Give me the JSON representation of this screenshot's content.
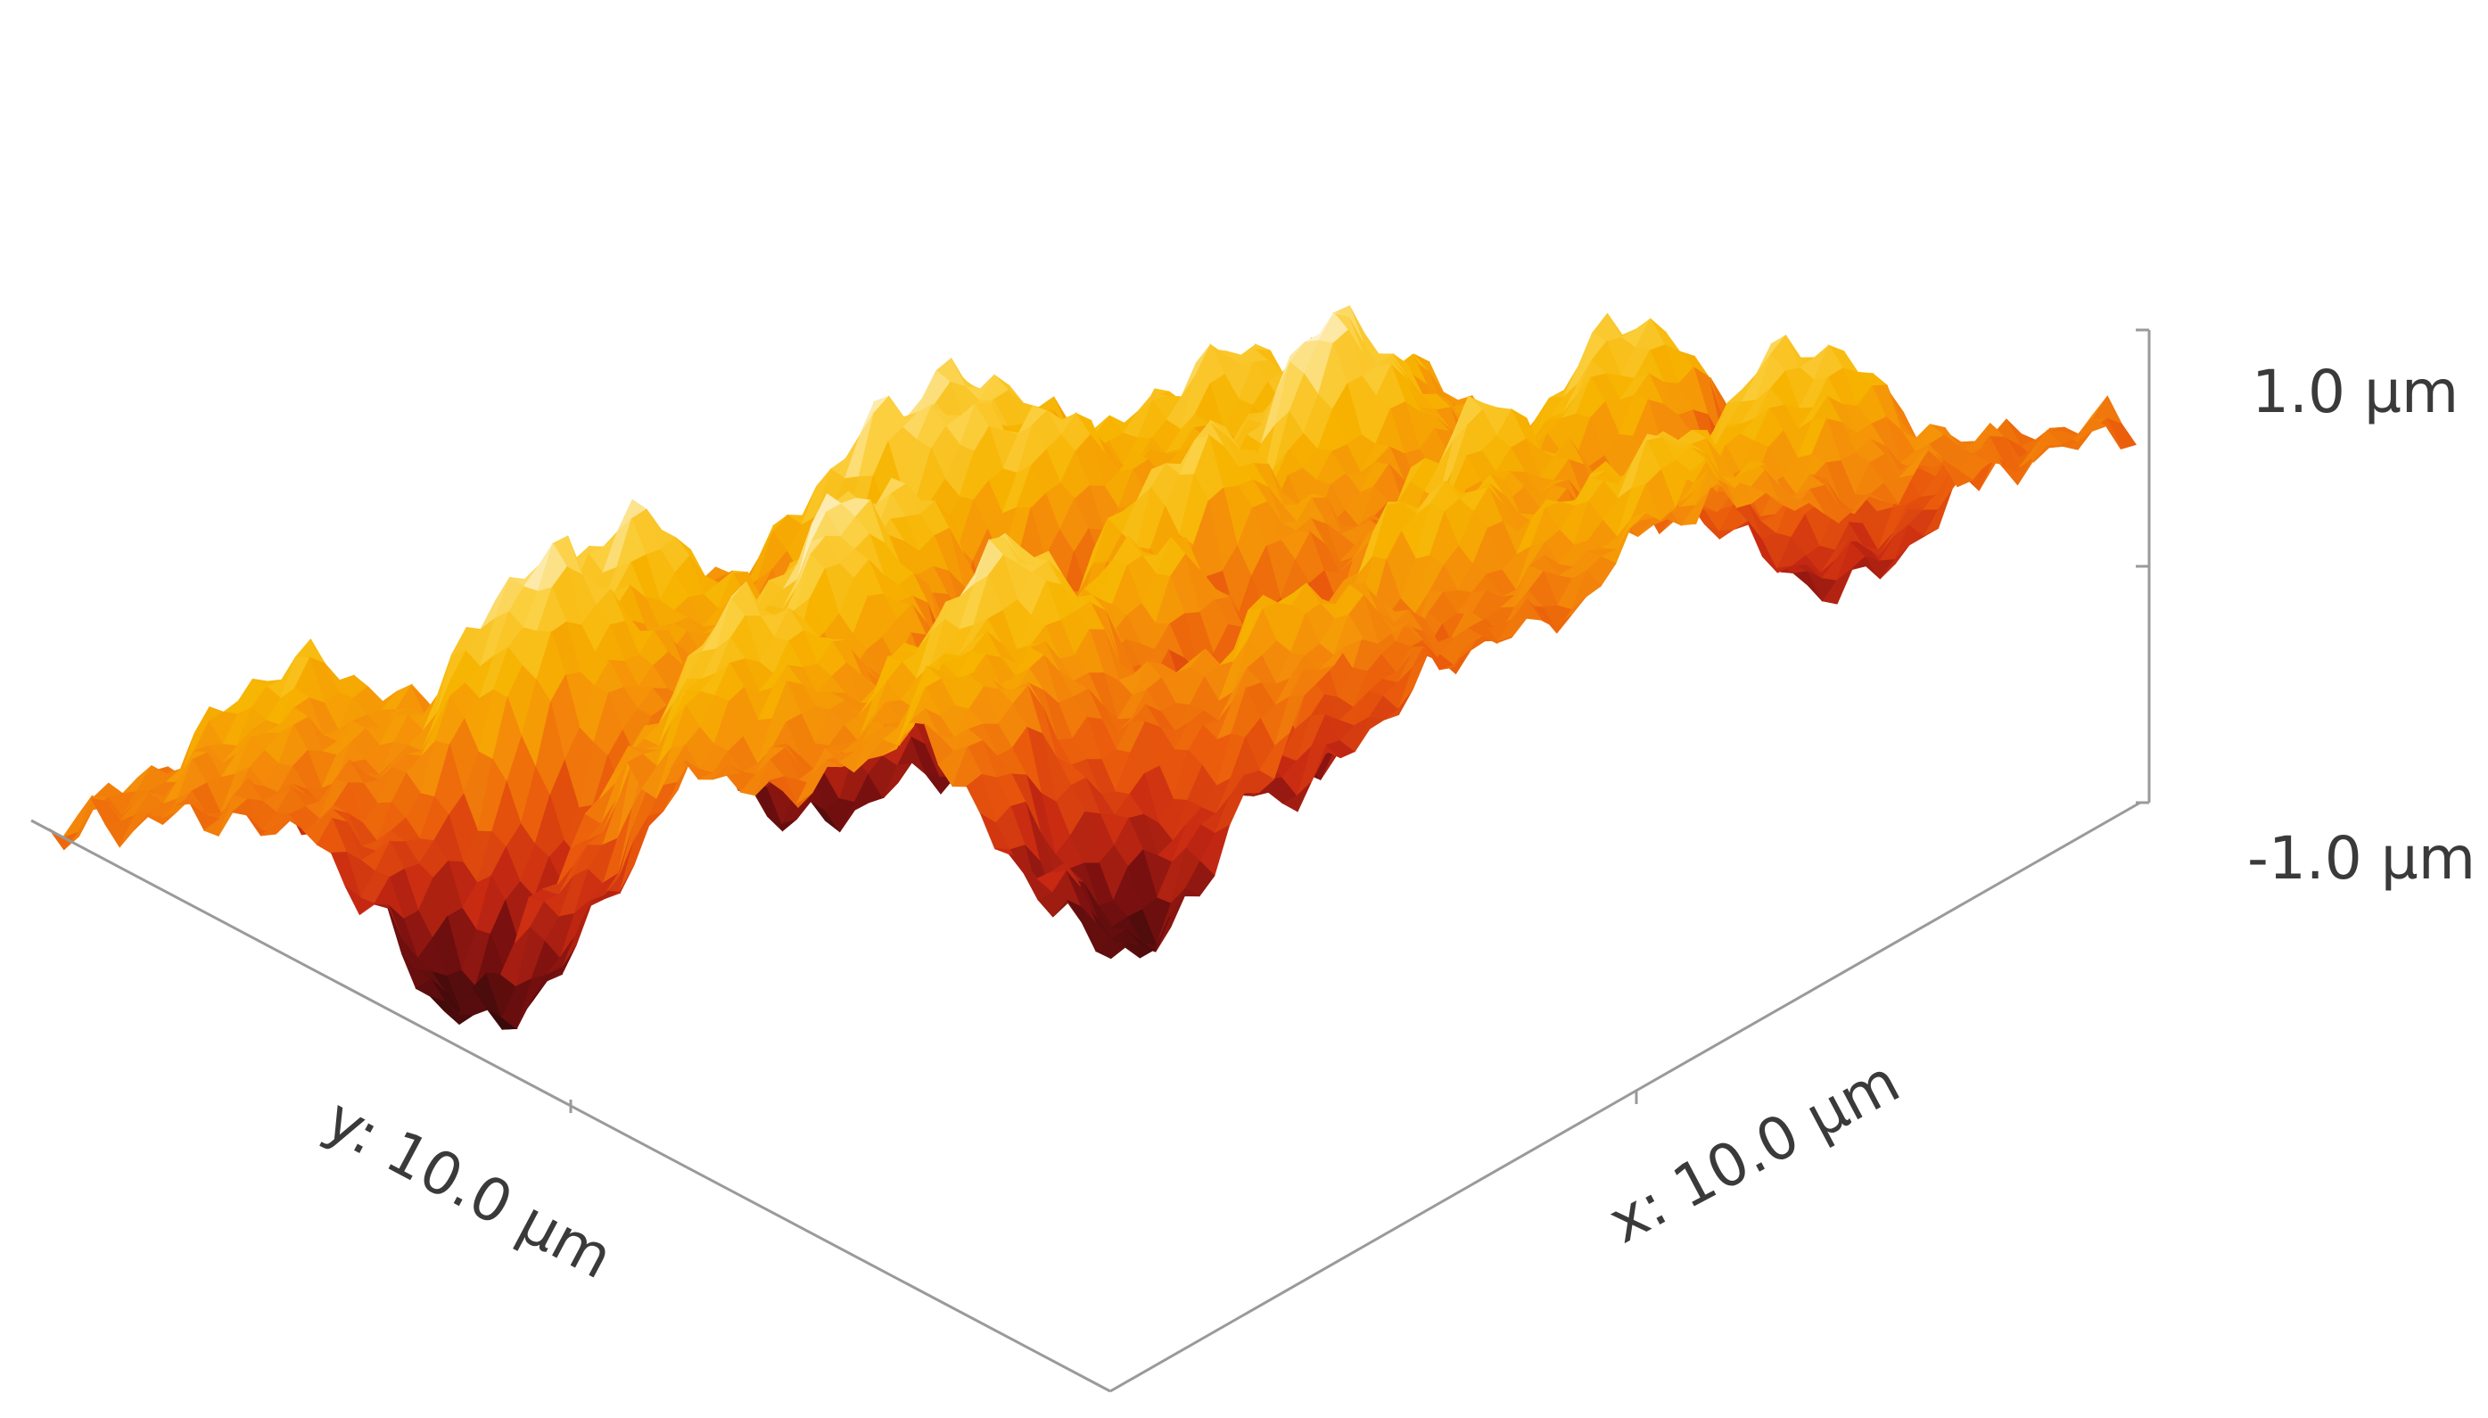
{
  "chart_data": {
    "type": "surface",
    "title": "",
    "x_axis": {
      "label": "x: 10.0 µm",
      "range": [
        0,
        10.0
      ],
      "unit": "µm"
    },
    "y_axis": {
      "label": "y: 10.0 µm",
      "range": [
        0,
        10.0
      ],
      "unit": "µm"
    },
    "z_axis": {
      "unit": "µm",
      "range": [
        -1.0,
        1.0
      ],
      "ticks": [
        {
          "value": 1.0,
          "label": "1.0 µm"
        },
        {
          "value": -1.0,
          "label": "-1.0 µm"
        }
      ]
    },
    "grid": false,
    "legend": "none",
    "colormap": [
      "#3a0a0a",
      "#7a1010",
      "#c92a12",
      "#ea5a0c",
      "#f48a0a",
      "#f7b400",
      "#fbd040",
      "#ffffff"
    ],
    "peaks": [
      {
        "x": 0.8,
        "y": 2.2,
        "z": 0.75
      },
      {
        "x": 1.4,
        "y": 3.6,
        "z": 0.9
      },
      {
        "x": 0.6,
        "y": 5.0,
        "z": 0.55
      },
      {
        "x": 2.2,
        "y": 1.2,
        "z": 0.6
      },
      {
        "x": 2.5,
        "y": 3.0,
        "z": 0.7
      },
      {
        "x": 2.0,
        "y": 6.5,
        "z": 0.8
      },
      {
        "x": 3.0,
        "y": 8.2,
        "z": 0.85
      },
      {
        "x": 3.6,
        "y": 5.6,
        "z": 0.75
      },
      {
        "x": 4.2,
        "y": 2.0,
        "z": 0.9
      },
      {
        "x": 4.8,
        "y": 7.0,
        "z": 0.95
      },
      {
        "x": 5.2,
        "y": 4.2,
        "z": 0.8
      },
      {
        "x": 5.8,
        "y": 9.0,
        "z": 0.7
      },
      {
        "x": 6.2,
        "y": 1.0,
        "z": 0.75
      },
      {
        "x": 6.6,
        "y": 6.0,
        "z": 0.85
      },
      {
        "x": 7.0,
        "y": 3.4,
        "z": 0.75
      },
      {
        "x": 7.6,
        "y": 8.2,
        "z": 0.8
      },
      {
        "x": 8.2,
        "y": 5.0,
        "z": 0.7
      },
      {
        "x": 8.8,
        "y": 2.0,
        "z": 0.65
      },
      {
        "x": 9.2,
        "y": 7.0,
        "z": 0.6
      },
      {
        "x": 9.6,
        "y": 4.0,
        "z": 0.55
      },
      {
        "x": 1.0,
        "y": 8.6,
        "z": 0.5
      },
      {
        "x": 3.2,
        "y": 0.6,
        "z": 0.45
      },
      {
        "x": 8.6,
        "y": 9.4,
        "z": 0.5
      }
    ],
    "valleys": [
      {
        "x": 1.8,
        "y": 4.6,
        "z": -0.9
      },
      {
        "x": 3.4,
        "y": 3.8,
        "z": -0.8
      },
      {
        "x": 4.0,
        "y": 9.6,
        "z": -1.0
      },
      {
        "x": 5.6,
        "y": 6.0,
        "z": -0.7
      },
      {
        "x": 6.8,
        "y": 4.6,
        "z": -0.8
      },
      {
        "x": 7.4,
        "y": 0.4,
        "z": -0.6
      },
      {
        "x": 8.4,
        "y": 6.4,
        "z": -0.7
      },
      {
        "x": 0.4,
        "y": 7.0,
        "z": -0.6
      },
      {
        "x": 9.8,
        "y": 9.2,
        "z": -0.9
      }
    ]
  }
}
